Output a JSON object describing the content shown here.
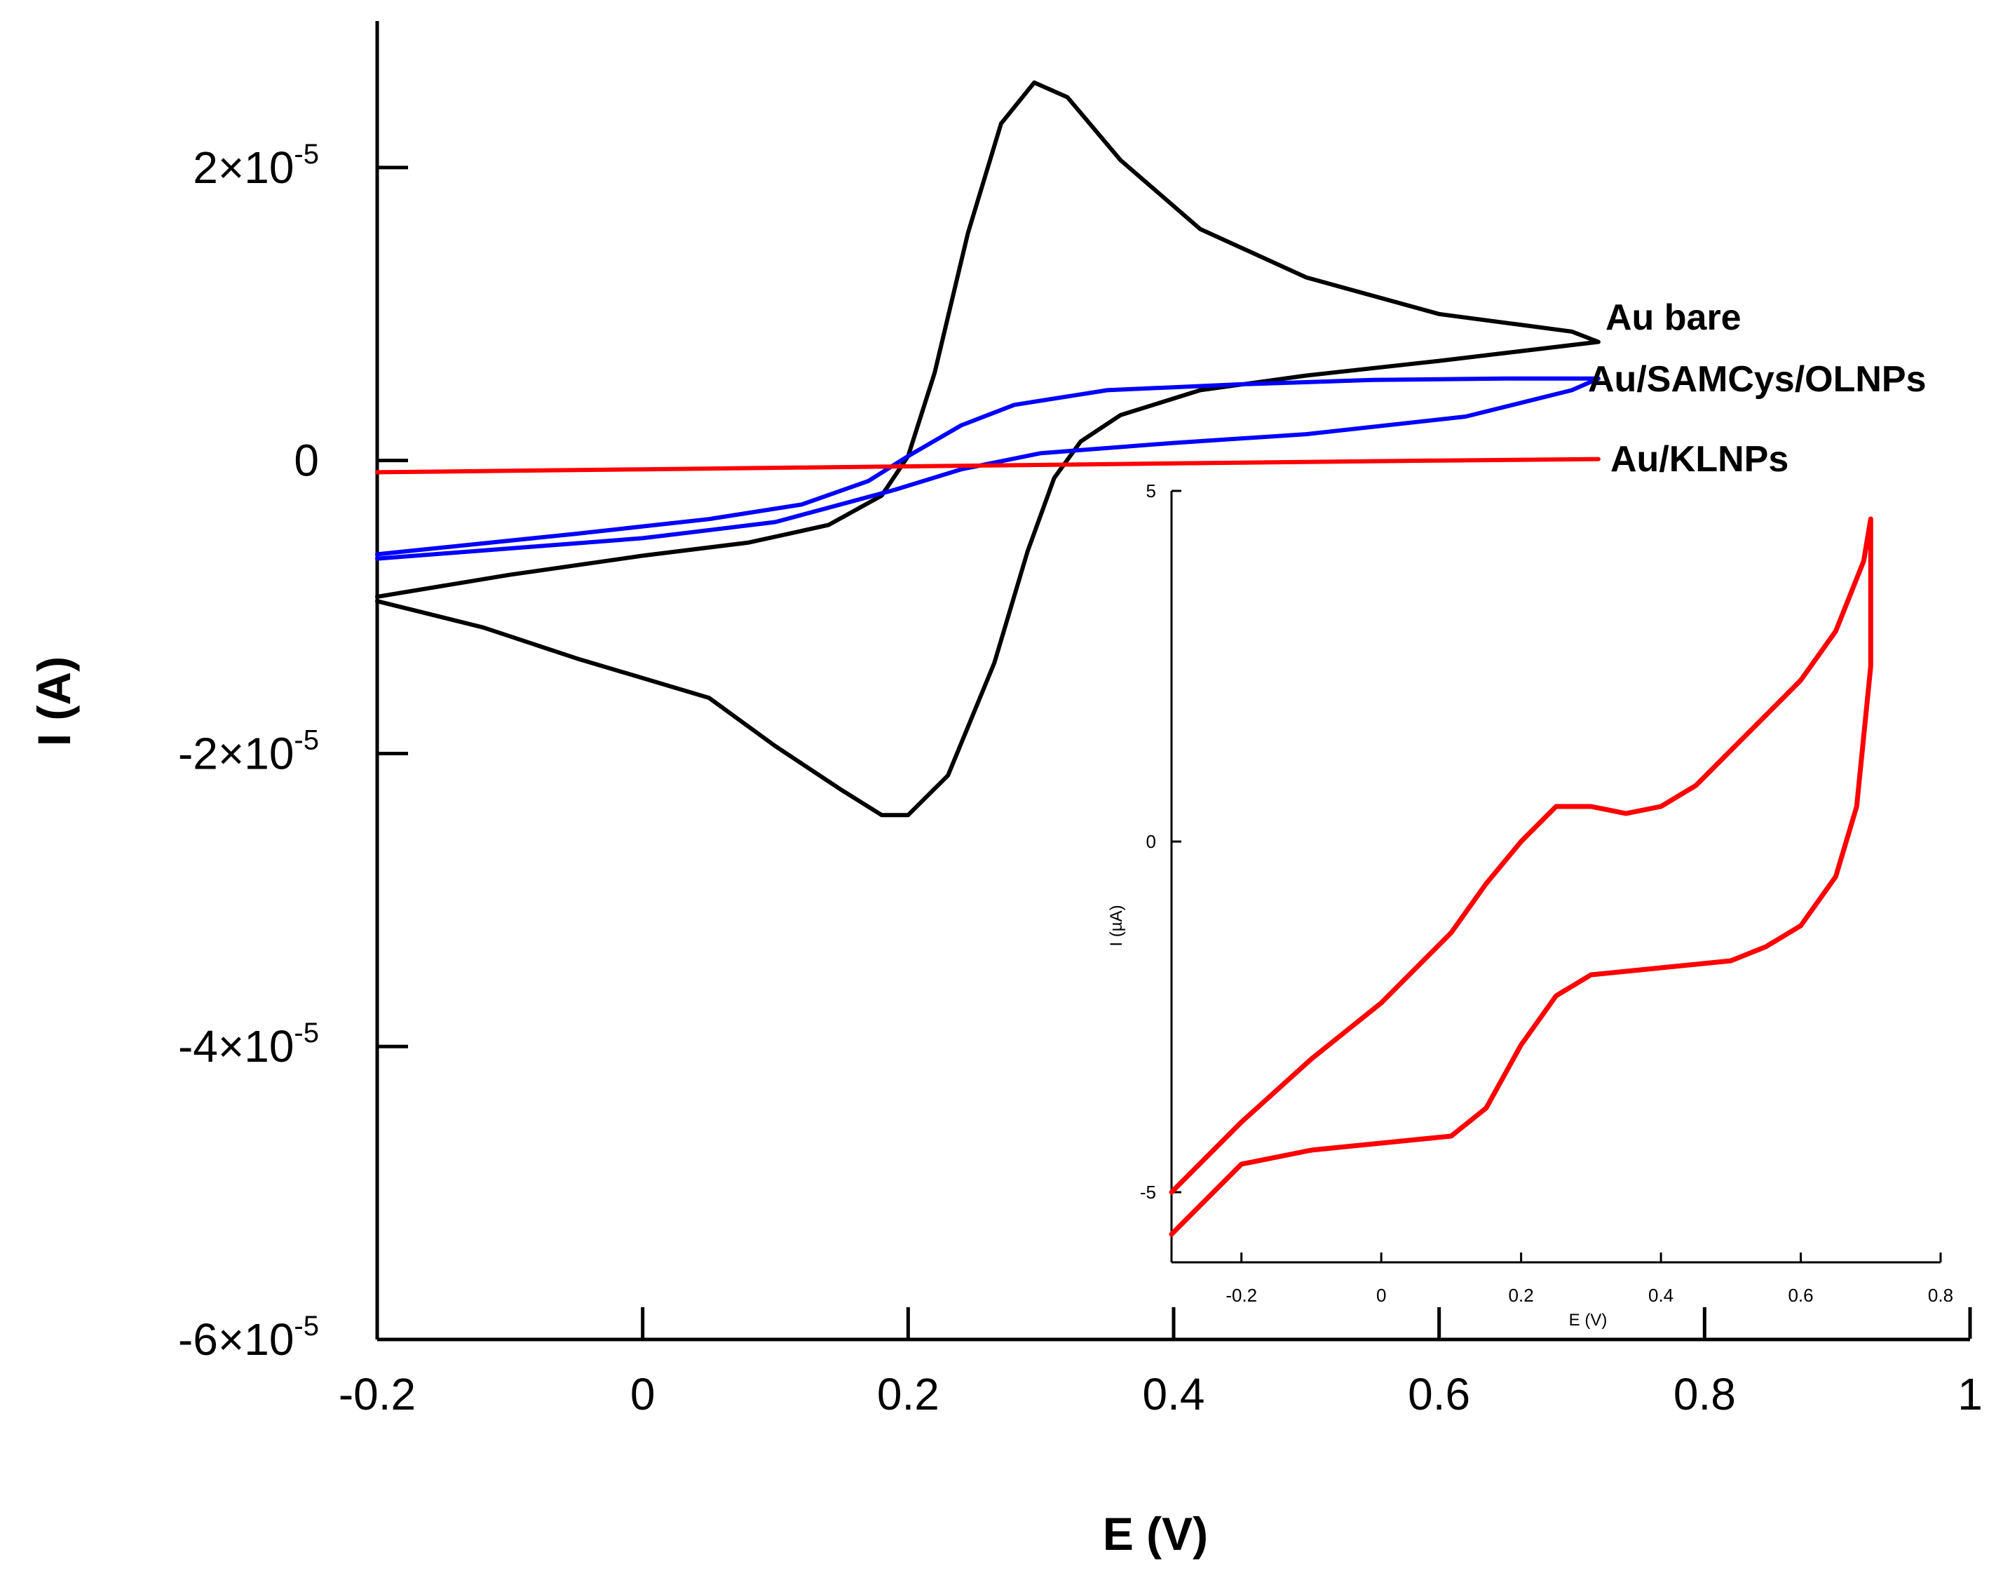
{
  "chart_data": [
    {
      "type": "line",
      "role": "main",
      "title": "",
      "xlabel": "E (V)",
      "ylabel": "I (A)",
      "xlim": [
        -0.2,
        1.0
      ],
      "ylim": [
        -6e-05,
        3e-05
      ],
      "xticks": [
        {
          "value": -0.2,
          "label": "-0.2"
        },
        {
          "value": 0,
          "label": "0"
        },
        {
          "value": 0.2,
          "label": "0.2"
        },
        {
          "value": 0.4,
          "label": "0.4"
        },
        {
          "value": 0.6,
          "label": "0.6"
        },
        {
          "value": 0.8,
          "label": "0.8"
        },
        {
          "value": 1.0,
          "label": "1"
        }
      ],
      "yticks": [
        {
          "value": 2e-05,
          "mantissa": "2×10",
          "exp": "-5"
        },
        {
          "value": 0,
          "mantissa": "0",
          "exp": ""
        },
        {
          "value": -2e-05,
          "mantissa": "-2×10",
          "exp": "-5"
        },
        {
          "value": -4e-05,
          "mantissa": "-4×10",
          "exp": "-5"
        },
        {
          "value": -6e-05,
          "mantissa": "-6×10",
          "exp": "-5"
        }
      ],
      "series": [
        {
          "name": "Au bare",
          "color": "#000000",
          "points": [
            [
              -0.2,
              -9.3e-06
            ],
            [
              -0.1,
              -7.8e-06
            ],
            [
              0.0,
              -6.5e-06
            ],
            [
              0.08,
              -5.6e-06
            ],
            [
              0.14,
              -4.4e-06
            ],
            [
              0.18,
              -2.4e-06
            ],
            [
              0.2,
              3e-07
            ],
            [
              0.22,
              6e-06
            ],
            [
              0.245,
              1.55e-05
            ],
            [
              0.27,
              2.3e-05
            ],
            [
              0.295,
              2.58e-05
            ],
            [
              0.32,
              2.48e-05
            ],
            [
              0.36,
              2.05e-05
            ],
            [
              0.42,
              1.58e-05
            ],
            [
              0.5,
              1.25e-05
            ],
            [
              0.6,
              1e-05
            ],
            [
              0.7,
              8.8e-06
            ],
            [
              0.72,
              8.1e-06
            ],
            [
              0.6,
              6.8e-06
            ],
            [
              0.5,
              5.8e-06
            ],
            [
              0.42,
              4.8e-06
            ],
            [
              0.36,
              3.1e-06
            ],
            [
              0.33,
              1.3e-06
            ],
            [
              0.31,
              -1.2e-06
            ],
            [
              0.29,
              -6.2e-06
            ],
            [
              0.265,
              -1.38e-05
            ],
            [
              0.23,
              -2.15e-05
            ],
            [
              0.2,
              -2.42e-05
            ],
            [
              0.18,
              -2.42e-05
            ],
            [
              0.15,
              -2.25e-05
            ],
            [
              0.1,
              -1.95e-05
            ],
            [
              0.05,
              -1.62e-05
            ],
            [
              -0.05,
              -1.35e-05
            ],
            [
              -0.12,
              -1.14e-05
            ],
            [
              -0.2,
              -9.6e-06
            ]
          ]
        },
        {
          "name": "Au/SAMCys/OLNPs",
          "color": "#0000ff",
          "points": [
            [
              -0.2,
              -6.4e-06
            ],
            [
              -0.05,
              -5e-06
            ],
            [
              0.05,
              -4e-06
            ],
            [
              0.12,
              -3e-06
            ],
            [
              0.17,
              -1.4e-06
            ],
            [
              0.2,
              3e-07
            ],
            [
              0.24,
              2.4e-06
            ],
            [
              0.28,
              3.8e-06
            ],
            [
              0.35,
              4.8e-06
            ],
            [
              0.45,
              5.2e-06
            ],
            [
              0.55,
              5.5e-06
            ],
            [
              0.65,
              5.6e-06
            ],
            [
              0.72,
              5.6e-06
            ],
            [
              0.7,
              4.8e-06
            ],
            [
              0.62,
              3e-06
            ],
            [
              0.5,
              1.8e-06
            ],
            [
              0.4,
              1.2e-06
            ],
            [
              0.3,
              5e-07
            ],
            [
              0.24,
              -6e-07
            ],
            [
              0.19,
              -2e-06
            ],
            [
              0.1,
              -4.2e-06
            ],
            [
              0.0,
              -5.3e-06
            ],
            [
              -0.1,
              -6e-06
            ],
            [
              -0.2,
              -6.7e-06
            ]
          ]
        },
        {
          "name": "Au/KLNPs",
          "color": "#ff0000",
          "points": [
            [
              -0.2,
              -8e-07
            ],
            [
              0.0,
              -6e-07
            ],
            [
              0.2,
              -4e-07
            ],
            [
              0.4,
              -2e-07
            ],
            [
              0.6,
              0.0
            ],
            [
              0.72,
              1e-07
            ]
          ]
        }
      ],
      "legend": [
        {
          "text": "Au bare",
          "position": "right of curve end"
        },
        {
          "text": "Au/SAMCys/OLNPs",
          "position": "right of curve end"
        },
        {
          "text": "Au/KLNPs",
          "position": "right of curve end"
        }
      ]
    },
    {
      "type": "line",
      "role": "inset",
      "title": "",
      "xlabel": "E (V)",
      "ylabel": "I (µA)",
      "xlim": [
        -0.3,
        0.8
      ],
      "ylim": [
        -6.0,
        5.0
      ],
      "xticks": [
        {
          "value": -0.2,
          "label": "-0.2"
        },
        {
          "value": 0,
          "label": "0"
        },
        {
          "value": 0.2,
          "label": "0.2"
        },
        {
          "value": 0.4,
          "label": "0.4"
        },
        {
          "value": 0.6,
          "label": "0.6"
        },
        {
          "value": 0.8,
          "label": "0.8"
        }
      ],
      "yticks": [
        {
          "value": 5,
          "label": "5"
        },
        {
          "value": 0,
          "label": "0"
        },
        {
          "value": -5,
          "label": "-5"
        }
      ],
      "series": [
        {
          "name": "Au/KLNPs (inset)",
          "color": "#ff0000",
          "points": [
            [
              -0.3,
              -5.0
            ],
            [
              -0.2,
              -4.0
            ],
            [
              -0.1,
              -3.1
            ],
            [
              0.0,
              -2.3
            ],
            [
              0.1,
              -1.3
            ],
            [
              0.15,
              -0.6
            ],
            [
              0.2,
              0.0
            ],
            [
              0.25,
              0.5
            ],
            [
              0.3,
              0.5
            ],
            [
              0.35,
              0.4
            ],
            [
              0.4,
              0.5
            ],
            [
              0.45,
              0.8
            ],
            [
              0.5,
              1.3
            ],
            [
              0.55,
              1.8
            ],
            [
              0.6,
              2.3
            ],
            [
              0.65,
              3.0
            ],
            [
              0.69,
              4.0
            ],
            [
              0.7,
              4.6
            ],
            [
              0.7,
              2.5
            ],
            [
              0.68,
              0.5
            ],
            [
              0.65,
              -0.5
            ],
            [
              0.6,
              -1.2
            ],
            [
              0.55,
              -1.5
            ],
            [
              0.5,
              -1.7
            ],
            [
              0.4,
              -1.8
            ],
            [
              0.3,
              -1.9
            ],
            [
              0.25,
              -2.2
            ],
            [
              0.2,
              -2.9
            ],
            [
              0.15,
              -3.8
            ],
            [
              0.1,
              -4.2
            ],
            [
              0.0,
              -4.3
            ],
            [
              -0.1,
              -4.4
            ],
            [
              -0.2,
              -4.6
            ],
            [
              -0.3,
              -5.6
            ]
          ]
        }
      ]
    }
  ]
}
